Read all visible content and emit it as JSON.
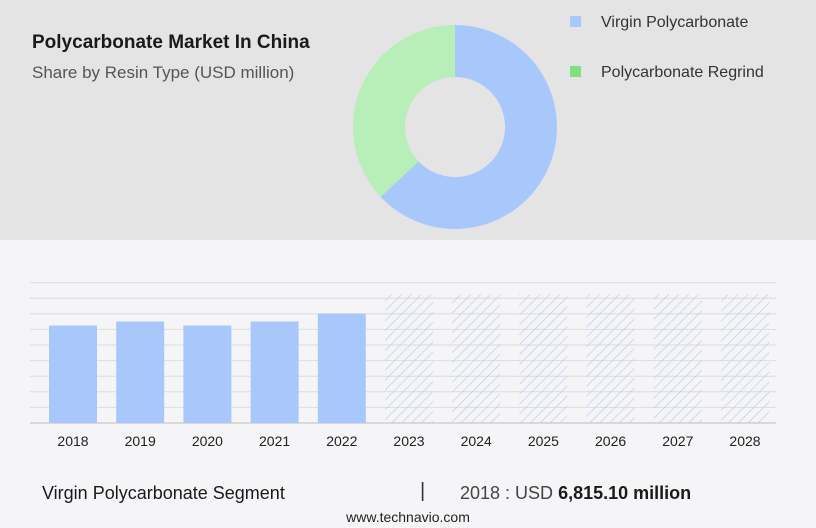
{
  "header": {
    "title": "Polycarbonate Market In China",
    "subtitle": "Share by Resin Type (USD million)"
  },
  "legend": {
    "items": [
      {
        "label": "Virgin Polycarbonate",
        "color": "#a8c8fc"
      },
      {
        "label": "Polycarbonate Regrind",
        "color": "#b8efb8"
      }
    ],
    "swatch_colors": [
      "#a8c8fc",
      "#7ee07e"
    ]
  },
  "chart_data": [
    {
      "type": "pie",
      "variant": "donut",
      "categories": [
        "Virgin Polycarbonate",
        "Polycarbonate Regrind"
      ],
      "values": [
        63,
        37
      ],
      "colors": [
        "#a8c8fc",
        "#b8efb8"
      ]
    },
    {
      "type": "bar",
      "categories": [
        "2018",
        "2019",
        "2020",
        "2021",
        "2022",
        "2023",
        "2024",
        "2025",
        "2026",
        "2027",
        "2028"
      ],
      "values": [
        6815.1,
        7100,
        6815.1,
        7100,
        7650,
        null,
        null,
        null,
        null,
        null,
        null
      ],
      "forecast_categories": [
        "2023",
        "2024",
        "2025",
        "2026",
        "2027",
        "2028"
      ],
      "bar_color": "#a8c8fc",
      "grid": true,
      "ylim": [
        0,
        10000
      ]
    }
  ],
  "footer": {
    "segment_label": "Virgin Polycarbonate Segment",
    "separator": "|",
    "value_prefix": "2018 : USD",
    "value_number": "6,815.10 million",
    "website": "www.technavio.com"
  }
}
